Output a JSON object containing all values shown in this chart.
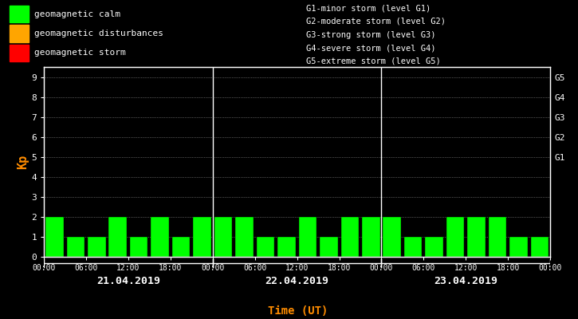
{
  "background_color": "#000000",
  "plot_bg_color": "#000000",
  "bar_color_calm": "#00ff00",
  "bar_color_disturbance": "#ffa500",
  "bar_color_storm": "#ff0000",
  "kp_values": [
    2,
    1,
    1,
    2,
    1,
    2,
    1,
    2,
    2,
    2,
    1,
    1,
    2,
    1,
    2,
    2,
    2,
    1,
    1,
    2,
    2,
    2,
    1,
    1
  ],
  "ylabel": "Kp",
  "xlabel": "Time (UT)",
  "ylim": [
    0,
    9.5
  ],
  "yticks": [
    0,
    1,
    2,
    3,
    4,
    5,
    6,
    7,
    8,
    9
  ],
  "day_labels": [
    "21.04.2019",
    "22.04.2019",
    "23.04.2019"
  ],
  "right_ytick_labels": [
    "G1",
    "G2",
    "G3",
    "G4",
    "G5"
  ],
  "right_ytick_positions": [
    5,
    6,
    7,
    8,
    9
  ],
  "legend_items": [
    {
      "label": "geomagnetic calm",
      "color": "#00ff00"
    },
    {
      "label": "geomagnetic disturbances",
      "color": "#ffa500"
    },
    {
      "label": "geomagnetic storm",
      "color": "#ff0000"
    }
  ],
  "storm_legend_text": [
    "G1-minor storm (level G1)",
    "G2-moderate storm (level G2)",
    "G3-strong storm (level G3)",
    "G4-severe storm (level G4)",
    "G5-extreme storm (level G5)"
  ],
  "text_color": "#ffffff",
  "axis_color": "#ffffff",
  "grid_color": "#ffffff",
  "ylabel_color": "#ff8c00",
  "xlabel_color": "#ff8c00",
  "bar_edge_color": "#000000",
  "divider_color": "#ffffff"
}
